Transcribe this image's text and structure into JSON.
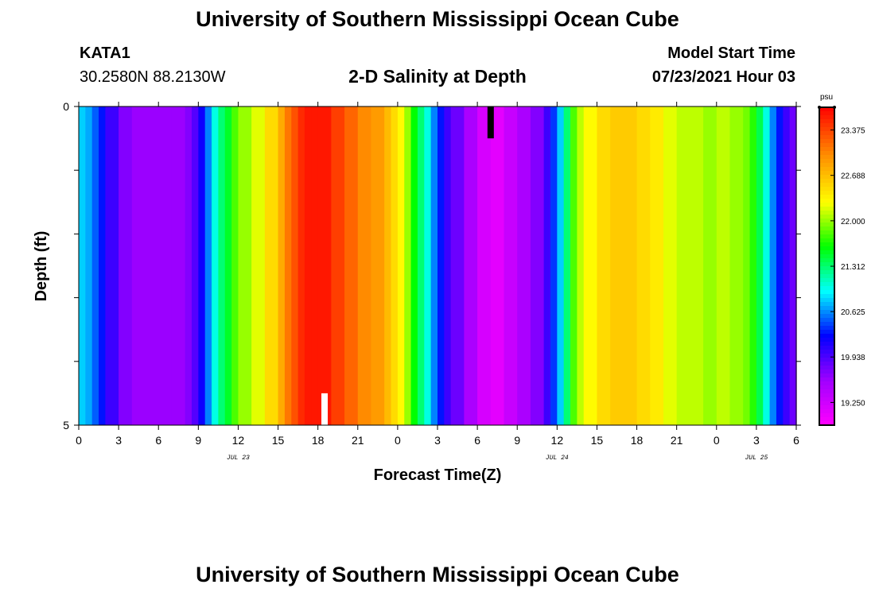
{
  "header": {
    "title": "University of Southern Mississippi Ocean Cube",
    "station_id": "KATA1",
    "coordinates": "30.2580N  88.2130W",
    "plot_title": "2-D Salinity at Depth",
    "model_start_label": "Model Start Time",
    "model_start_value": "07/23/2021 Hour 03"
  },
  "footer": {
    "title": "University of Southern Mississippi Ocean Cube"
  },
  "chart_data": {
    "type": "heatmap",
    "title": "2-D Salinity at Depth",
    "xlabel": "Forecast Time(Z)",
    "ylabel": "Depth (ft)",
    "x_ticks": [
      "0",
      "3",
      "6",
      "9",
      "12",
      "15",
      "18",
      "21",
      "0",
      "3",
      "6",
      "9",
      "12",
      "15",
      "18",
      "21",
      "0",
      "3",
      "6"
    ],
    "x_range_hours": [
      0,
      54
    ],
    "date_labels": [
      {
        "text": "JUL 23",
        "hour": 12
      },
      {
        "text": "JUL 24",
        "hour": 36
      },
      {
        "text": "JUL 25",
        "hour": 51
      }
    ],
    "y_ticks": [
      "0",
      "5"
    ],
    "y_range": [
      0,
      5
    ],
    "colorbar": {
      "unit": "psu",
      "range": [
        18.906,
        23.719
      ],
      "tick_labels": [
        "23.375",
        "22.688",
        "22.000",
        "21.312",
        "20.625",
        "19.938",
        "19.250"
      ],
      "tick_values": [
        23.375,
        22.688,
        22.0,
        21.312,
        20.625,
        19.938,
        19.25
      ]
    },
    "time_hours": [
      0,
      0.5,
      1,
      1.5,
      2,
      3,
      4,
      5,
      6,
      7,
      8,
      8.5,
      9,
      9.5,
      10,
      10.5,
      11,
      11.5,
      12,
      13,
      14,
      15,
      15.5,
      16,
      16.5,
      17,
      17.5,
      18,
      19,
      20,
      21,
      22,
      23,
      23.5,
      24,
      24.5,
      25,
      25.5,
      26,
      26.5,
      27,
      27.5,
      28,
      29,
      30,
      31,
      32,
      33,
      34,
      35,
      35.5,
      36,
      36.5,
      37,
      37.5,
      38,
      39,
      40,
      41,
      42,
      43,
      44,
      45,
      46,
      47,
      48,
      49,
      50,
      50.5,
      51,
      51.5,
      52,
      52.5,
      53,
      53.5,
      54
    ],
    "salinity_psu": [
      20.8,
      20.7,
      20.5,
      20.3,
      20.0,
      19.7,
      19.6,
      19.6,
      19.6,
      19.6,
      19.7,
      19.9,
      20.2,
      20.6,
      21.0,
      21.3,
      21.5,
      21.8,
      22.0,
      22.2,
      22.5,
      22.8,
      23.1,
      23.3,
      23.5,
      23.6,
      23.6,
      23.6,
      23.4,
      23.2,
      23.0,
      22.9,
      22.7,
      22.5,
      22.3,
      22.0,
      21.6,
      21.3,
      21.0,
      20.6,
      20.3,
      20.0,
      19.8,
      19.5,
      19.2,
      19.1,
      19.3,
      19.5,
      19.7,
      20.0,
      20.4,
      20.8,
      21.3,
      21.8,
      22.1,
      22.3,
      22.5,
      22.6,
      22.6,
      22.5,
      22.4,
      22.2,
      22.1,
      22.1,
      22.0,
      22.1,
      22.0,
      21.9,
      21.7,
      21.4,
      21.0,
      20.6,
      20.3,
      20.0,
      19.8,
      19.6
    ],
    "markers": [
      {
        "type": "bar",
        "color": "#000000",
        "hour": 31,
        "depth_from": 0,
        "depth_to": 0.5
      },
      {
        "type": "bar",
        "color": "#ffffff",
        "hour": 18.5,
        "depth_from": 4.5,
        "depth_to": 5
      }
    ]
  }
}
